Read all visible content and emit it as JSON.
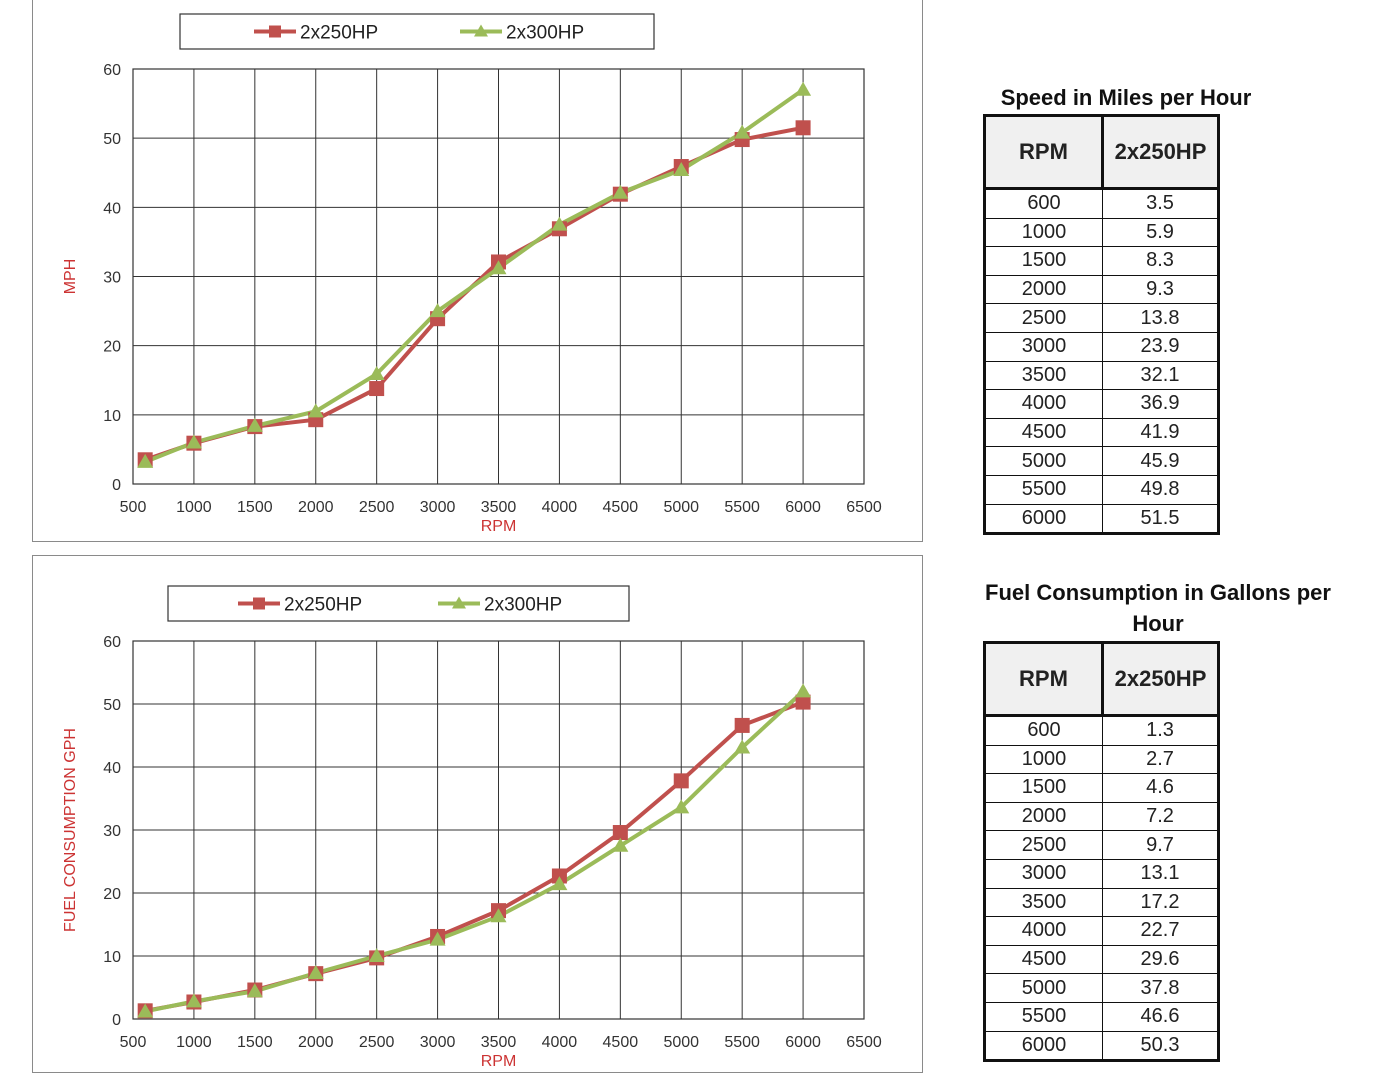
{
  "chart_data": [
    {
      "type": "line",
      "title": "",
      "xlabel": "RPM",
      "ylabel": "MPH",
      "xlim": [
        500,
        6500
      ],
      "ylim": [
        0,
        60
      ],
      "xticks": [
        500,
        1000,
        1500,
        2000,
        2500,
        3000,
        3500,
        4000,
        4500,
        5000,
        5500,
        6000,
        6500
      ],
      "yticks": [
        0,
        10,
        20,
        30,
        40,
        50,
        60
      ],
      "grid": true,
      "legend": "top",
      "x": [
        600,
        1000,
        1500,
        2000,
        2500,
        3000,
        3500,
        4000,
        4500,
        5000,
        5500,
        6000
      ],
      "series": [
        {
          "name": "2x250HP",
          "color": "#c0504d",
          "marker": "square",
          "values": [
            3.5,
            5.9,
            8.3,
            9.3,
            13.8,
            23.9,
            32.1,
            36.9,
            41.9,
            45.9,
            49.8,
            51.5
          ]
        },
        {
          "name": "2x300HP",
          "color": "#9bbb59",
          "marker": "triangle",
          "values": [
            3.2,
            6.0,
            8.4,
            10.5,
            15.9,
            25.0,
            31.2,
            37.5,
            42.1,
            45.4,
            50.8,
            57.0
          ]
        }
      ]
    },
    {
      "type": "line",
      "title": "",
      "xlabel": "RPM",
      "ylabel": "FUEL CONSUMPTION GPH",
      "xlim": [
        500,
        6500
      ],
      "ylim": [
        0,
        60
      ],
      "xticks": [
        500,
        1000,
        1500,
        2000,
        2500,
        3000,
        3500,
        4000,
        4500,
        5000,
        5500,
        6000,
        6500
      ],
      "yticks": [
        0,
        10,
        20,
        30,
        40,
        50,
        60
      ],
      "grid": true,
      "legend": "top",
      "x": [
        600,
        1000,
        1500,
        2000,
        2500,
        3000,
        3500,
        4000,
        4500,
        5000,
        5500,
        6000
      ],
      "series": [
        {
          "name": "2x250HP",
          "color": "#c0504d",
          "marker": "square",
          "values": [
            1.3,
            2.7,
            4.6,
            7.2,
            9.7,
            13.1,
            17.2,
            22.7,
            29.6,
            37.8,
            46.6,
            50.3
          ]
        },
        {
          "name": "2x300HP",
          "color": "#9bbb59",
          "marker": "triangle",
          "values": [
            1.2,
            2.8,
            4.4,
            7.3,
            10.0,
            12.6,
            16.3,
            21.4,
            27.5,
            33.6,
            43.1,
            52.0
          ]
        }
      ]
    }
  ],
  "tables": {
    "speed": {
      "title": "Speed in Miles per Hour",
      "headers": [
        "RPM",
        "2x250HP"
      ],
      "rows": [
        [
          "600",
          "3.5"
        ],
        [
          "1000",
          "5.9"
        ],
        [
          "1500",
          "8.3"
        ],
        [
          "2000",
          "9.3"
        ],
        [
          "2500",
          "13.8"
        ],
        [
          "3000",
          "23.9"
        ],
        [
          "3500",
          "32.1"
        ],
        [
          "4000",
          "36.9"
        ],
        [
          "4500",
          "41.9"
        ],
        [
          "5000",
          "45.9"
        ],
        [
          "5500",
          "49.8"
        ],
        [
          "6000",
          "51.5"
        ]
      ]
    },
    "fuel": {
      "title": "Fuel Consumption in Gallons per Hour",
      "headers": [
        "RPM",
        "2x250HP"
      ],
      "rows": [
        [
          "600",
          "1.3"
        ],
        [
          "1000",
          "2.7"
        ],
        [
          "1500",
          "4.6"
        ],
        [
          "2000",
          "7.2"
        ],
        [
          "2500",
          "9.7"
        ],
        [
          "3000",
          "13.1"
        ],
        [
          "3500",
          "17.2"
        ],
        [
          "4000",
          "22.7"
        ],
        [
          "4500",
          "29.6"
        ],
        [
          "5000",
          "37.8"
        ],
        [
          "5500",
          "46.6"
        ],
        [
          "6000",
          "50.3"
        ]
      ]
    }
  }
}
